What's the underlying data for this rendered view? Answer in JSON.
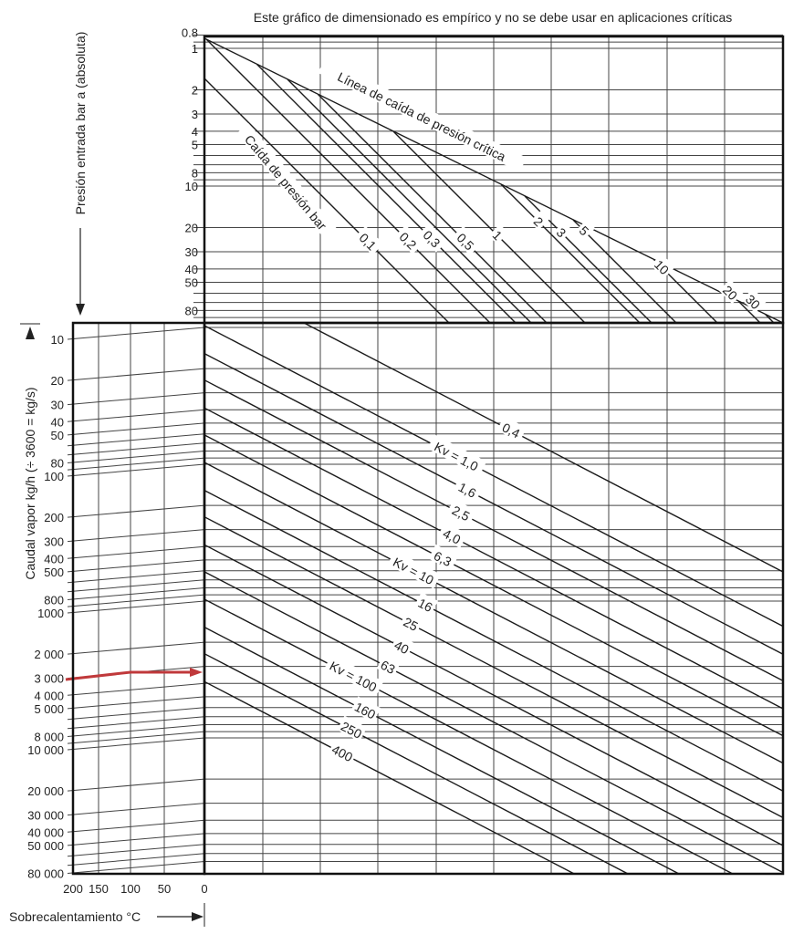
{
  "chart_data": {
    "type": "line",
    "title": "Este gráfico de dimensionado es empírico y no se debe usar en aplicaciones críticas",
    "pressure_axis": {
      "label": "Presión entrada bar a (absoluta)",
      "scale": "log",
      "range": [
        0.8,
        100
      ],
      "tick_labels": [
        "0.8",
        "1",
        "2",
        "3",
        "4",
        "5",
        "8",
        "10",
        "20",
        "30",
        "40",
        "50",
        "80"
      ],
      "tick_values": [
        0.8,
        1,
        2,
        3,
        4,
        5,
        8,
        10,
        20,
        30,
        40,
        50,
        80
      ]
    },
    "pressure_drop": {
      "label": "Caída de presión bar",
      "critical_label": "Línea de caída de presión crítica",
      "values": [
        0.1,
        0.2,
        0.3,
        0.5,
        1,
        2,
        3,
        5,
        10,
        20,
        30
      ],
      "line_labels": [
        "0,1",
        "0,2",
        "0,3",
        "0,5",
        "1",
        "2",
        "3",
        "5",
        "10",
        "20",
        "30"
      ]
    },
    "flow_axis": {
      "label": "Caudal vapor kg/h (÷ 3600 = kg/s)",
      "scale": "log",
      "range": [
        10,
        80000
      ],
      "tick_labels": [
        "10",
        "20",
        "30",
        "40",
        "50",
        "80",
        "100",
        "200",
        "300",
        "400",
        "500",
        "800",
        "1000",
        "2 000",
        "3 000",
        "4 000",
        "5 000",
        "8 000",
        "10 000",
        "20 000",
        "30 000",
        "40 000",
        "50 000",
        "80 000"
      ],
      "tick_values": [
        10,
        20,
        30,
        40,
        50,
        80,
        100,
        200,
        300,
        400,
        500,
        800,
        1000,
        2000,
        3000,
        4000,
        5000,
        8000,
        10000,
        20000,
        30000,
        40000,
        50000,
        80000
      ]
    },
    "superheat_axis": {
      "label": "Sobrecalentamiento °C",
      "tick_labels": [
        "200",
        "150",
        "100",
        "50",
        "0"
      ],
      "tick_values": [
        200,
        150,
        100,
        50,
        0
      ]
    },
    "kv_lines": {
      "values": [
        0.4,
        1.0,
        1.6,
        2.5,
        4.0,
        6.3,
        10,
        16,
        25,
        40,
        63,
        100,
        160,
        250,
        400
      ],
      "line_labels": [
        "0,4",
        "Kv = 1,0",
        "1,6",
        "2,5",
        "4,0",
        "6,3",
        "Kv = 10",
        "16",
        "25",
        "40",
        "63",
        "Kv = 100",
        "160",
        "250",
        "400"
      ]
    },
    "example": {
      "flow_kg_h": 3000,
      "superheat_c": 200,
      "color": "#c0393b"
    },
    "grid": true
  }
}
